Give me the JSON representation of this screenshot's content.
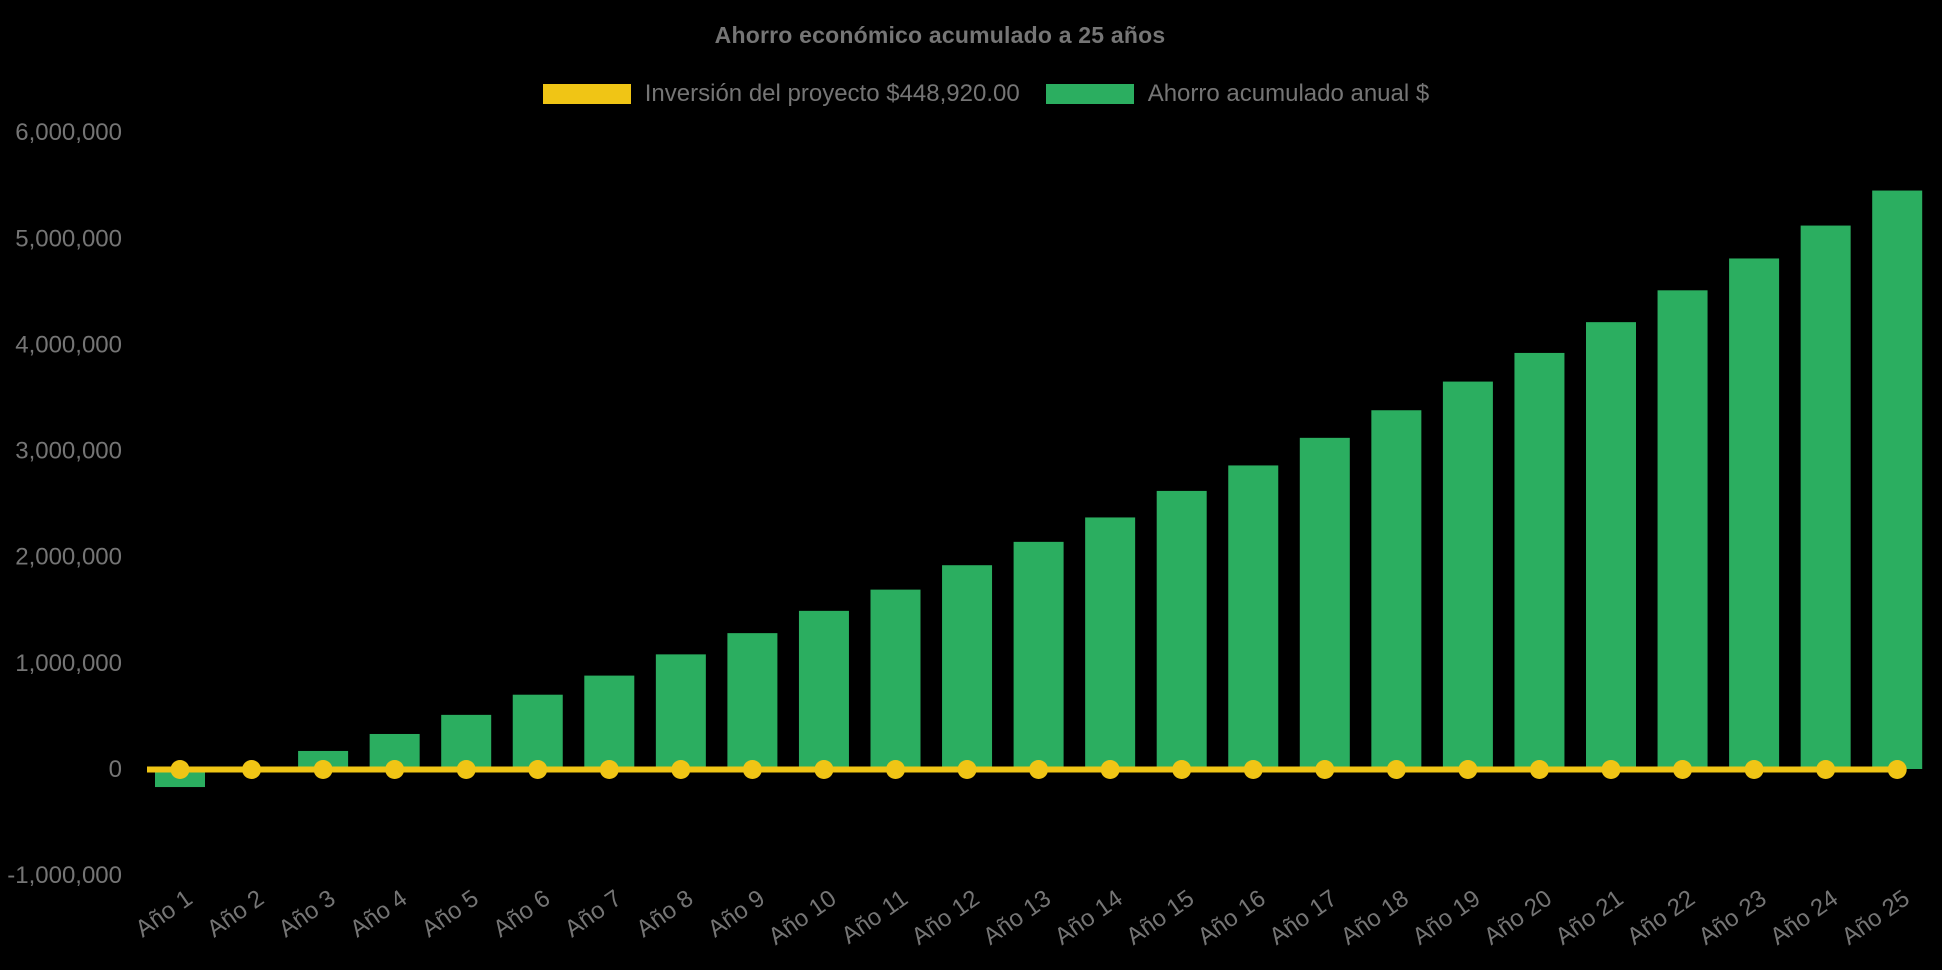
{
  "background_color": "#000000",
  "title": {
    "text": "Ahorro económico acumulado a 25 años",
    "color": "#757575"
  },
  "legend": {
    "position": "top",
    "items": [
      {
        "label": "Inversión del proyecto $448,920.00",
        "color": "#F0C515",
        "series": "investment-line"
      },
      {
        "label": "Ahorro acumulado anual $",
        "color": "#2BAE60",
        "series": "savings-bars"
      }
    ]
  },
  "chart_data": {
    "type": "bar",
    "title": "Ahorro económico acumulado a 25 años",
    "xlabel": "",
    "ylabel": "",
    "grid": false,
    "legend_position": "top",
    "x_tick_rotation": -35,
    "ylim": [
      -1300000,
      6300000
    ],
    "y_ticks": [
      6000000,
      5000000,
      4000000,
      3000000,
      2000000,
      1000000,
      0,
      -1000000
    ],
    "categories": [
      "Año 1",
      "Año 2",
      "Año 3",
      "Año 4",
      "Año 5",
      "Año 6",
      "Año 7",
      "Año 8",
      "Año 9",
      "Año 10",
      "Año 11",
      "Año 12",
      "Año 13",
      "Año 14",
      "Año 15",
      "Año 16",
      "Año 17",
      "Año 18",
      "Año 19",
      "Año 20",
      "Año 21",
      "Año 22",
      "Año 23",
      "Año 24",
      "Año 25"
    ],
    "series": [
      {
        "name": "Ahorro acumulado anual $",
        "type": "bar",
        "color": "#2BAE60",
        "values": [
          -170000,
          10000,
          170000,
          330000,
          510000,
          700000,
          880000,
          1080000,
          1280000,
          1490000,
          1690000,
          1920000,
          2140000,
          2370000,
          2620000,
          2860000,
          3120000,
          3380000,
          3650000,
          3920000,
          4210000,
          4510000,
          4810000,
          5120000,
          5450000
        ]
      },
      {
        "name": "Inversión del proyecto $448,920.00",
        "type": "line",
        "color": "#F0C515",
        "point_style": "circle",
        "values": [
          0,
          0,
          0,
          0,
          0,
          0,
          0,
          0,
          0,
          0,
          0,
          0,
          0,
          0,
          0,
          0,
          0,
          0,
          0,
          0,
          0,
          0,
          0,
          0,
          0
        ]
      }
    ],
    "axis_text_color": "#757575"
  }
}
